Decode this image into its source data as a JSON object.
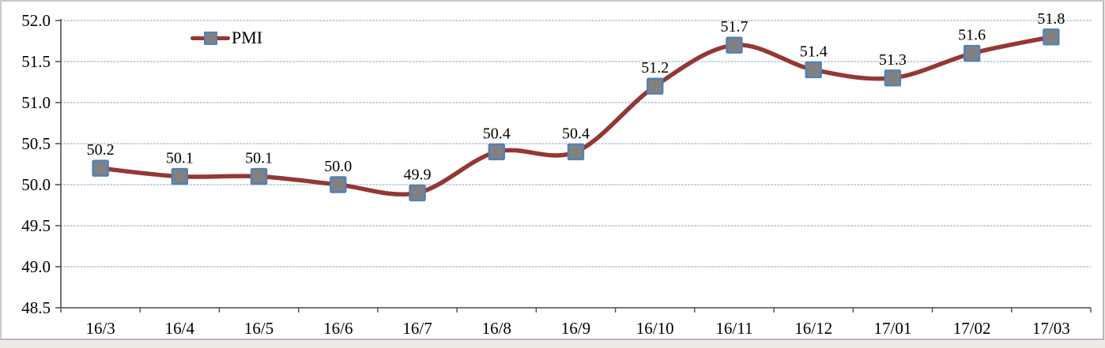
{
  "legend": {
    "label": "PMI",
    "line_color": "#953735",
    "marker_fill": "#818181",
    "marker_border": "#4f81bd"
  },
  "chart_data": {
    "type": "line",
    "title": "",
    "categories": [
      "16/3",
      "16/4",
      "16/5",
      "16/6",
      "16/7",
      "16/8",
      "16/9",
      "16/10",
      "16/11",
      "16/12",
      "17/01",
      "17/02",
      "17/03"
    ],
    "series": [
      {
        "name": "PMI",
        "values": [
          50.2,
          50.1,
          50.1,
          50.0,
          49.9,
          50.4,
          50.4,
          51.2,
          51.7,
          51.4,
          51.3,
          51.6,
          51.8
        ],
        "data_labels": [
          "50.2",
          "50.1",
          "50.1",
          "50.0",
          "49.9",
          "50.4",
          "50.4",
          "51.2",
          "51.7",
          "51.4",
          "51.3",
          "51.6",
          "51.8"
        ],
        "line_color": "#953735",
        "marker_fill": "#818181",
        "marker_border": "#4f81bd",
        "smooth": true
      }
    ],
    "xlabel": "",
    "ylabel": "",
    "ylim": [
      48.5,
      52.0
    ],
    "y_tick_labels": [
      "48.5",
      "49.0",
      "49.5",
      "50.0",
      "50.5",
      "51.0",
      "51.5",
      "52.0"
    ],
    "grid": "horizontal-dotted",
    "grid_color": "#aec3dc",
    "axis_color": "#4d4d4d",
    "legend_position": "inside-top-left"
  }
}
